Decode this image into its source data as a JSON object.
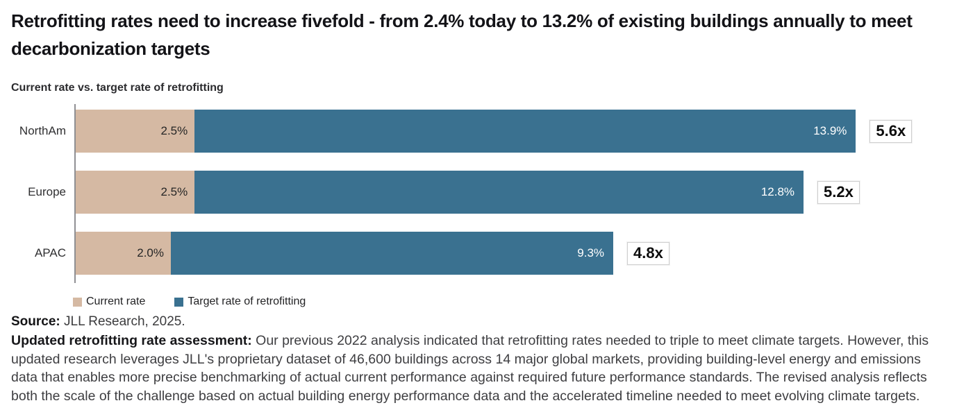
{
  "header": {
    "title": "Retrofitting rates need to increase fivefold - from 2.4% today to 13.2% of existing buildings annually to meet decarbonization targets"
  },
  "chart": {
    "subtitle": "Current rate vs. target rate of retrofitting"
  },
  "chart_data": {
    "type": "bar",
    "orientation": "horizontal",
    "stacked": true,
    "title": "Current rate vs. target rate of retrofitting",
    "categories": [
      "NorthAm",
      "Europe",
      "APAC"
    ],
    "series": [
      {
        "name": "Current rate",
        "color": "#d5b9a3",
        "values": [
          2.5,
          2.5,
          2.0
        ],
        "labels": [
          "2.5%",
          "2.5%",
          "2.0%"
        ]
      },
      {
        "name": "Target rate of retrofitting",
        "color": "#3a7190",
        "values": [
          13.9,
          12.8,
          9.3
        ],
        "labels": [
          "13.9%",
          "12.8%",
          "9.3%"
        ]
      }
    ],
    "multipliers": [
      "5.6x",
      "5.2x",
      "4.8x"
    ],
    "xlabel": "",
    "ylabel": "",
    "xlim": [
      0,
      16.4
    ],
    "grid": false,
    "legend_position": "bottom",
    "value_label_colors": [
      "#262626",
      "#ffffff"
    ]
  },
  "footer": {
    "source_label": "Source:",
    "source_text": " JLL Research, 2025.",
    "note_label": "Updated retrofitting rate assessment:",
    "note_text": " Our previous 2022 analysis indicated that retrofitting rates needed to triple to meet climate targets. However, this updated research leverages JLL's proprietary dataset of 46,600 buildings across 14 major global markets, providing building-level energy and emissions data that enables more precise benchmarking of actual current performance against required future performance standards. The revised analysis reflects both the scale of the challenge based on actual building energy performance data and the accelerated timeline needed to meet evolving climate targets."
  },
  "colors": {
    "current_rate": "#d5b9a3",
    "target_rate": "#3a7190",
    "axis": "#8f8f93",
    "multiplier_border": "#cfcfcf"
  }
}
